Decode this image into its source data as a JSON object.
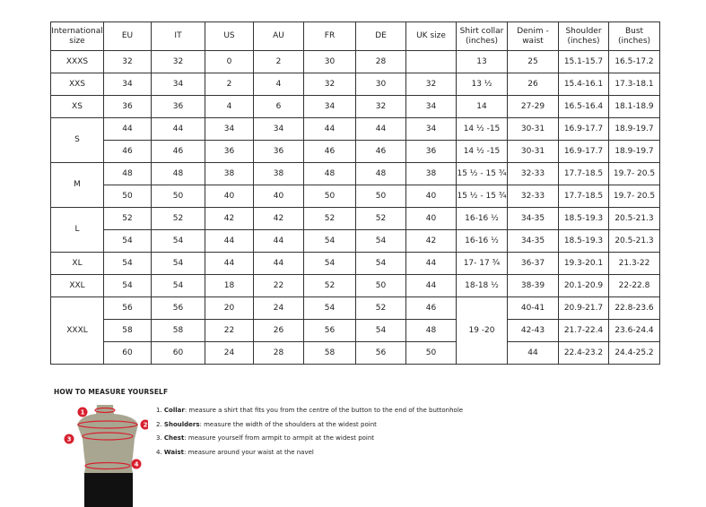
{
  "table": {
    "headers": [
      "International size",
      "EU",
      "IT",
      "US",
      "AU",
      "FR",
      "DE",
      "UK size",
      "Shirt collar (inches)",
      "Denim - waist",
      "Shoulder (inches)",
      "Bust (inches)"
    ],
    "groups": [
      {
        "size": "XXXS",
        "rows": [
          [
            "32",
            "32",
            "0",
            "2",
            "30",
            "28",
            "",
            "13",
            "25",
            "15.1-15.7",
            "16.5-17.2"
          ]
        ]
      },
      {
        "size": "XXS",
        "rows": [
          [
            "34",
            "34",
            "2",
            "4",
            "32",
            "30",
            "32",
            "13 ½",
            "26",
            "15.4-16.1",
            "17.3-18.1"
          ]
        ]
      },
      {
        "size": "XS",
        "rows": [
          [
            "36",
            "36",
            "4",
            "6",
            "34",
            "32",
            "34",
            "14",
            "27-29",
            "16.5-16.4",
            "18.1-18.9"
          ]
        ]
      },
      {
        "size": "S",
        "rows": [
          [
            "44",
            "44",
            "34",
            "34",
            "44",
            "44",
            "34",
            "14 ½ -15",
            "30-31",
            "16.9-17.7",
            "18.9-19.7"
          ],
          [
            "46",
            "46",
            "36",
            "36",
            "46",
            "46",
            "36",
            "14 ½ -15",
            "30-31",
            "16.9-17.7",
            "18.9-19.7"
          ]
        ]
      },
      {
        "size": "M",
        "rows": [
          [
            "48",
            "48",
            "38",
            "38",
            "48",
            "48",
            "38",
            "15 ½ - 15 ¾",
            "32-33",
            "17.7-18.5",
            "19.7- 20.5"
          ],
          [
            "50",
            "50",
            "40",
            "40",
            "50",
            "50",
            "40",
            "15 ½ - 15 ¾",
            "32-33",
            "17.7-18.5",
            "19.7- 20.5"
          ]
        ]
      },
      {
        "size": "L",
        "rows": [
          [
            "52",
            "52",
            "42",
            "42",
            "52",
            "52",
            "40",
            "16-16 ½",
            "34-35",
            "18.5-19.3",
            "20.5-21.3"
          ],
          [
            "54",
            "54",
            "44",
            "44",
            "54",
            "54",
            "42",
            "16-16 ½",
            "34-35",
            "18.5-19.3",
            "20.5-21.3"
          ]
        ]
      },
      {
        "size": "XL",
        "rows": [
          [
            "54",
            "54",
            "44",
            "44",
            "54",
            "54",
            "44",
            "17- 17 ¾",
            "36-37",
            "19.3-20.1",
            "21.3-22"
          ]
        ]
      },
      {
        "size": "XXL",
        "rows": [
          [
            "54",
            "54",
            "18",
            "22",
            "52",
            "50",
            "44",
            "18-18 ½",
            "38-39",
            "20.1-20.9",
            "22-22.8"
          ]
        ]
      },
      {
        "size": "XXXL",
        "collar_merged": "19 -20",
        "rows": [
          [
            "56",
            "56",
            "20",
            "24",
            "54",
            "52",
            "46",
            null,
            "40-41",
            "20.9-21.7",
            "22.8-23.6"
          ],
          [
            "58",
            "58",
            "22",
            "26",
            "56",
            "54",
            "48",
            null,
            "42-43",
            "21.7-22.4",
            "23.6-24.4"
          ],
          [
            "60",
            "60",
            "24",
            "28",
            "58",
            "56",
            "50",
            null,
            "44",
            "22.4-23.2",
            "24.4-25.2"
          ]
        ]
      }
    ]
  },
  "measure": {
    "title": "HOW TO MEASURE YOURSELF",
    "steps": [
      {
        "num": "1.",
        "term": "Collar",
        "text": ": measure a shirt that fits you from the centre of the button to the end of the buttonhole"
      },
      {
        "num": "2.",
        "term": "Shoulders",
        "text": ": measure the width of the shoulders at the widest point"
      },
      {
        "num": "3.",
        "term": "Chest",
        "text": ": measure yourself from armpit to armpit at the widest point"
      },
      {
        "num": "4.",
        "term": "Waist",
        "text": ": measure around your waist at the navel"
      }
    ],
    "markers": [
      "1",
      "2",
      "3",
      "4"
    ],
    "accent": "#d8202f",
    "torso_color": "#a8a690"
  }
}
